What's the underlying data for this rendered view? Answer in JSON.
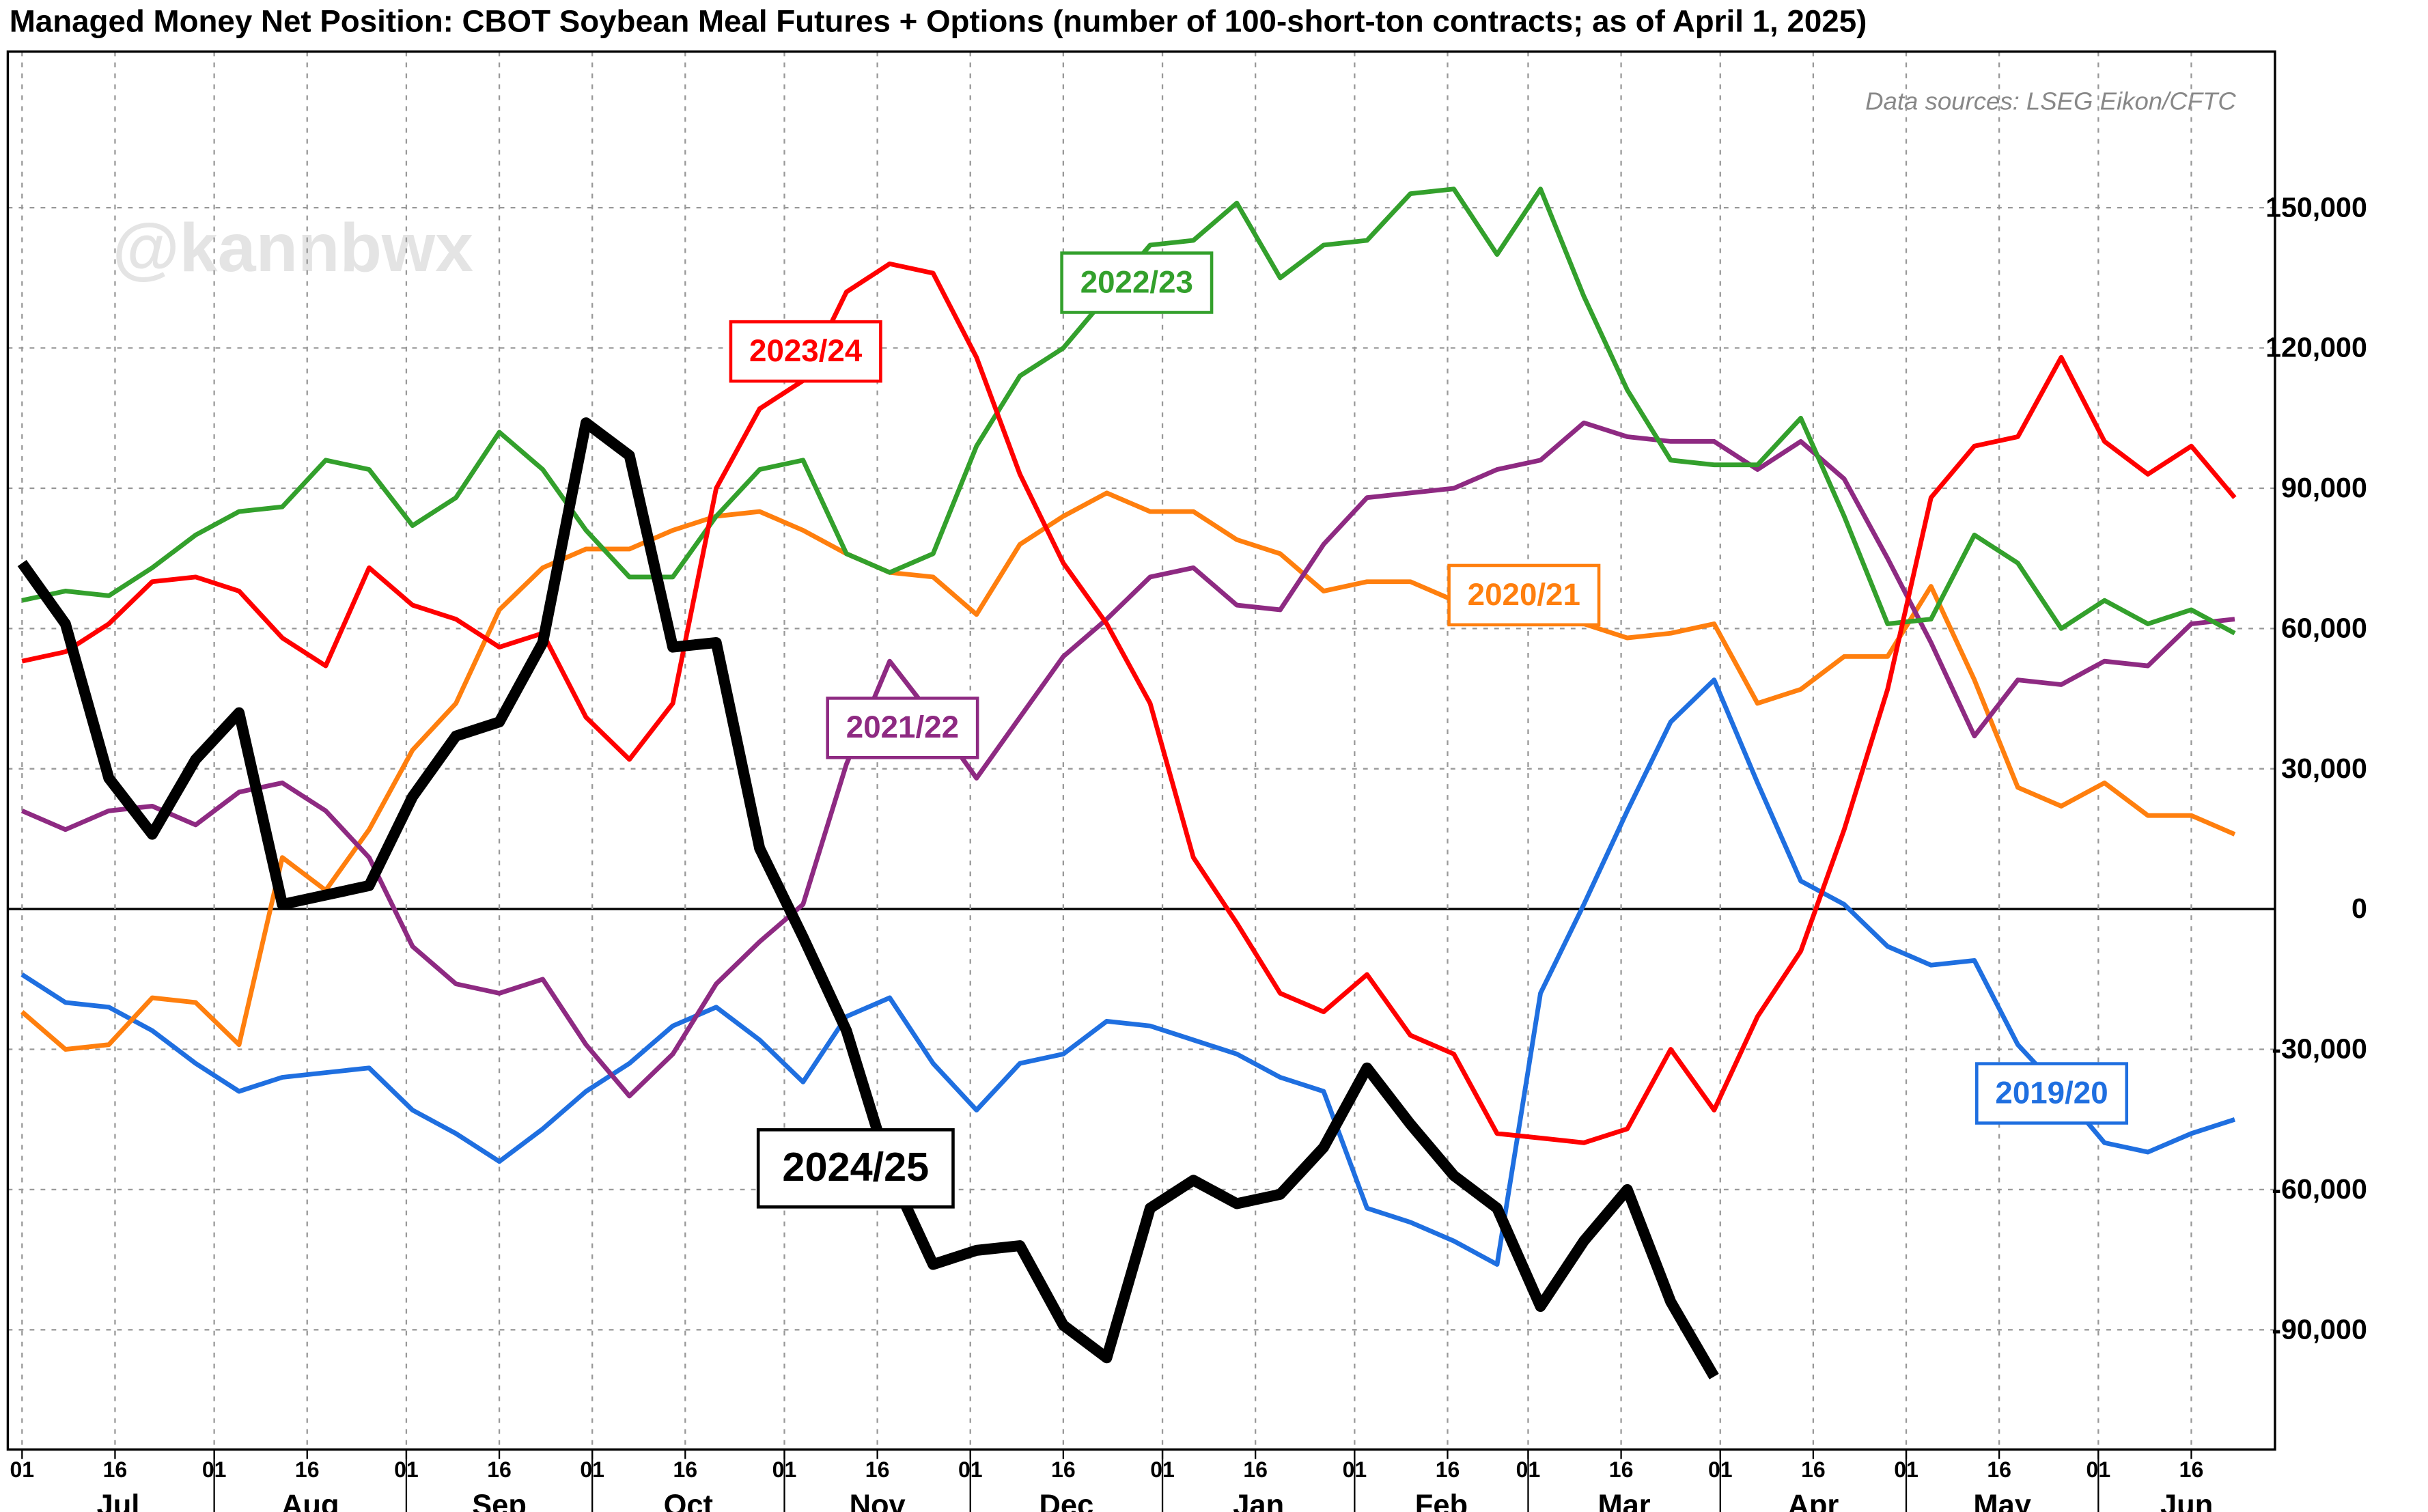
{
  "chart_data": {
    "type": "line",
    "title": "Managed Money Net Position: CBOT Soybean Meal Futures + Options (number of 100-short-ton contracts; as of April 1, 2025)",
    "source": "Data sources: LSEG Eikon/CFTC",
    "watermark": "@kannbwx",
    "x": [
      0,
      7,
      14,
      21,
      28,
      35,
      42,
      49,
      56,
      63,
      70,
      77,
      84,
      91,
      98,
      105,
      112,
      119,
      126,
      133,
      140,
      147,
      154,
      161,
      168,
      175,
      182,
      189,
      196,
      203,
      210,
      217,
      224,
      231,
      238,
      245,
      252,
      259,
      266,
      273,
      280,
      287,
      294,
      301,
      308,
      315,
      322,
      329,
      336,
      343,
      350,
      357
    ],
    "xlim": [
      -2.3,
      363.5
    ],
    "xticks": [
      {
        "value": 0,
        "label": "01"
      },
      {
        "value": 15,
        "label": "16"
      },
      {
        "value": 31,
        "label": "01"
      },
      {
        "value": 46,
        "label": "16"
      },
      {
        "value": 62,
        "label": "01"
      },
      {
        "value": 77,
        "label": "16"
      },
      {
        "value": 92,
        "label": "01"
      },
      {
        "value": 107,
        "label": "16"
      },
      {
        "value": 123,
        "label": "01"
      },
      {
        "value": 138,
        "label": "16"
      },
      {
        "value": 153,
        "label": "01"
      },
      {
        "value": 168,
        "label": "16"
      },
      {
        "value": 184,
        "label": "01"
      },
      {
        "value": 199,
        "label": "16"
      },
      {
        "value": 215,
        "label": "01"
      },
      {
        "value": 230,
        "label": "16"
      },
      {
        "value": 243,
        "label": "01"
      },
      {
        "value": 258,
        "label": "16"
      },
      {
        "value": 274,
        "label": "01"
      },
      {
        "value": 289,
        "label": "16"
      },
      {
        "value": 304,
        "label": "01"
      },
      {
        "value": 319,
        "label": "16"
      },
      {
        "value": 335,
        "label": "01"
      },
      {
        "value": 350,
        "label": "16"
      }
    ],
    "month_labels": [
      "Jul",
      "Aug",
      "Sep",
      "Oct",
      "Nov",
      "Dec",
      "Jan",
      "Feb",
      "Mar",
      "Apr",
      "May",
      "Jun"
    ],
    "ylim": [
      -115600,
      183400
    ],
    "yticks": [
      {
        "value": -90000,
        "label": "-90,000"
      },
      {
        "value": -60000,
        "label": "-60,000"
      },
      {
        "value": -30000,
        "label": "-30,000"
      },
      0,
      {
        "value": 30000,
        "label": "30,000"
      },
      {
        "value": 60000,
        "label": "60,000"
      },
      {
        "value": 90000,
        "label": "90,000"
      },
      {
        "value": 120000,
        "label": "120,000"
      },
      {
        "value": 150000,
        "label": "150,000"
      }
    ],
    "grid": true,
    "series": [
      {
        "name": "2024/25",
        "color": "#000000",
        "width": 7,
        "values": [
          74000,
          61000,
          28000,
          16000,
          32000,
          42000,
          1000,
          3000,
          5000,
          24000,
          37000,
          40000,
          57000,
          104000,
          97000,
          56000,
          57000,
          13000,
          -6000,
          -26000,
          -56000,
          -76000,
          -73000,
          -72000,
          -89000,
          -96000,
          -64000,
          -58000,
          -63000,
          -61000,
          -51000,
          -34000,
          -46000,
          -57000,
          -64000,
          -85000,
          -71000,
          -60000,
          -84000,
          -100000,
          null,
          null,
          null,
          null,
          null,
          null,
          null,
          null,
          null,
          null,
          null,
          null
        ]
      },
      {
        "name": "2023/24",
        "color": "#ff0000",
        "width": 3,
        "values": [
          53000,
          55000,
          61000,
          70000,
          71000,
          68000,
          58000,
          52000,
          73000,
          65000,
          62000,
          56000,
          59000,
          41000,
          32000,
          44000,
          90000,
          107000,
          113000,
          132000,
          138000,
          136000,
          118000,
          93000,
          74000,
          61000,
          44000,
          11000,
          -3000,
          -18000,
          -22000,
          -14000,
          -27000,
          -31000,
          -48000,
          -49000,
          -50000,
          -47000,
          -30000,
          -43000,
          -23000,
          -9000,
          17000,
          47000,
          88000,
          99000,
          101000,
          118000,
          100000,
          93000,
          99000,
          88000
        ]
      },
      {
        "name": "2022/23",
        "color": "#33a02c",
        "width": 3,
        "values": [
          66000,
          68000,
          67000,
          73000,
          80000,
          85000,
          86000,
          96000,
          94000,
          82000,
          88000,
          102000,
          94000,
          81000,
          71000,
          71000,
          84000,
          94000,
          96000,
          76000,
          72000,
          76000,
          99000,
          114000,
          120000,
          131000,
          142000,
          143000,
          151000,
          135000,
          142000,
          143000,
          153000,
          154000,
          140000,
          154000,
          131000,
          111000,
          96000,
          95000,
          95000,
          105000,
          84000,
          61000,
          62000,
          80000,
          74000,
          60000,
          66000,
          61000,
          64000,
          59000
        ]
      },
      {
        "name": "2021/22",
        "color": "#8e2a82",
        "width": 3,
        "values": [
          21000,
          17000,
          21000,
          22000,
          18000,
          25000,
          27000,
          21000,
          11000,
          -8000,
          -16000,
          -18000,
          -15000,
          -29000,
          -40000,
          -31000,
          -16000,
          -7000,
          1000,
          31000,
          53000,
          41000,
          28000,
          41000,
          54000,
          62000,
          71000,
          73000,
          65000,
          64000,
          78000,
          88000,
          89000,
          90000,
          94000,
          96000,
          104000,
          101000,
          100000,
          100000,
          94000,
          100000,
          92000,
          75000,
          57000,
          37000,
          49000,
          48000,
          53000,
          52000,
          61000,
          62000
        ]
      },
      {
        "name": "2020/21",
        "color": "#ff7f0e",
        "width": 3,
        "values": [
          -22000,
          -30000,
          -29000,
          -19000,
          -20000,
          -29000,
          11000,
          4000,
          17000,
          34000,
          44000,
          64000,
          73000,
          77000,
          77000,
          81000,
          84000,
          85000,
          81000,
          76000,
          72000,
          71000,
          63000,
          78000,
          84000,
          89000,
          85000,
          85000,
          79000,
          76000,
          68000,
          70000,
          70000,
          66000,
          66000,
          62000,
          61000,
          58000,
          59000,
          61000,
          44000,
          47000,
          54000,
          54000,
          69000,
          49000,
          26000,
          22000,
          27000,
          20000,
          20000,
          16000
        ]
      },
      {
        "name": "2019/20",
        "color": "#1f6fe0",
        "width": 3,
        "values": [
          -14000,
          -20000,
          -21000,
          -26000,
          -33000,
          -39000,
          -36000,
          -35000,
          -34000,
          -43000,
          -48000,
          -54000,
          -47000,
          -39000,
          -33000,
          -25000,
          -21000,
          -28000,
          -37000,
          -23000,
          -19000,
          -33000,
          -43000,
          -33000,
          -31000,
          -24000,
          -25000,
          -28000,
          -31000,
          -36000,
          -39000,
          -64000,
          -67000,
          -71000,
          -76000,
          -18000,
          1000,
          21000,
          40000,
          49000,
          27000,
          6000,
          1000,
          -8000,
          -12000,
          -11000,
          -29000,
          -39000,
          -50000,
          -52000,
          -48000,
          -45000
        ]
      }
    ]
  }
}
